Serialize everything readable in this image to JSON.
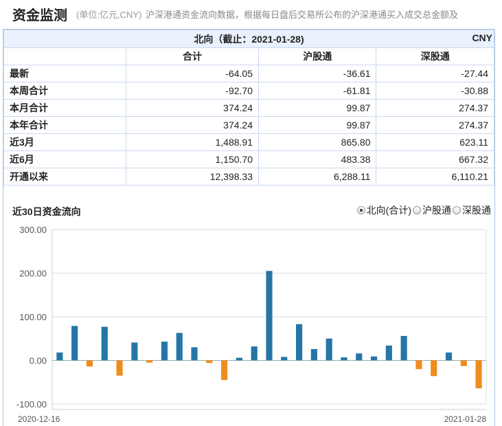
{
  "header": {
    "title": "资金监测",
    "unit": "(单位:亿元,CNY)",
    "description": "沪深港通资金流向数据，根据每日盘后交易所公布的沪深港通买入成交总金额及"
  },
  "table": {
    "title": "北向（截止：2021-01-28)",
    "currency": "CNY",
    "columns": [
      "合计",
      "沪股通",
      "深股通"
    ],
    "rows": [
      {
        "label": "最新",
        "values": [
          "-64.05",
          "-36.61",
          "-27.44"
        ]
      },
      {
        "label": "本周合计",
        "values": [
          "-92.70",
          "-61.81",
          "-30.88"
        ]
      },
      {
        "label": "本月合计",
        "values": [
          "374.24",
          "99.87",
          "274.37"
        ]
      },
      {
        "label": "本年合计",
        "values": [
          "374.24",
          "99.87",
          "274.37"
        ]
      },
      {
        "label": "近3月",
        "values": [
          "1,488.91",
          "865.80",
          "623.11"
        ]
      },
      {
        "label": "近6月",
        "values": [
          "1,150.70",
          "483.38",
          "667.32"
        ]
      },
      {
        "label": "开通以来",
        "values": [
          "12,398.33",
          "6,288.11",
          "6,110.21"
        ]
      }
    ]
  },
  "chart_header": {
    "title": "近30日资金流向",
    "options": [
      {
        "label": "北向(合计)",
        "selected": true
      },
      {
        "label": "沪股通",
        "selected": false
      },
      {
        "label": "深股通",
        "selected": false
      }
    ]
  },
  "chart_data": {
    "type": "bar",
    "title": "近30日资金流向",
    "series": [
      {
        "values": [
          18,
          79,
          -14,
          77,
          -35,
          41,
          -5,
          43,
          63,
          30,
          -6,
          -45,
          6,
          32,
          205,
          8,
          83,
          26,
          50,
          7,
          16,
          9,
          34,
          56,
          -20,
          -36,
          18,
          -13,
          -64
        ]
      }
    ],
    "x_start_label": "2020-12-16",
    "x_end_label": "2021-01-28",
    "ylim": [
      -100,
      300
    ],
    "yticks": [
      "300.00",
      "200.00",
      "100.00",
      "0.00",
      "-100.00"
    ],
    "ytick_values": [
      300,
      200,
      100,
      0,
      -100
    ],
    "positive_color": "#2576a6",
    "negative_color": "#f08c1e",
    "grid": true
  }
}
